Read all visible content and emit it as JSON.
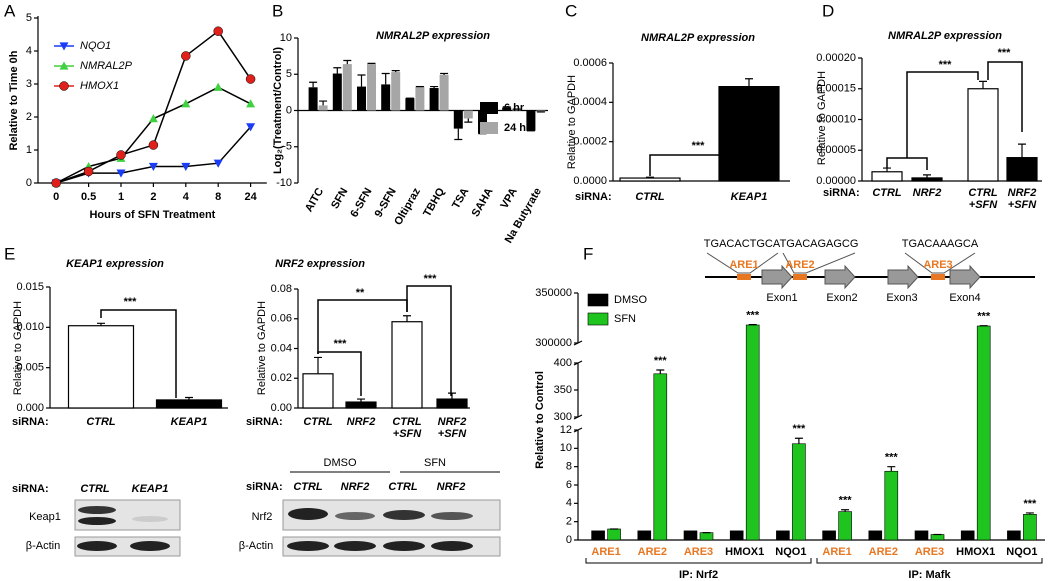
{
  "panel_labels": [
    "A",
    "B",
    "C",
    "D",
    "E",
    "F"
  ],
  "chart_data": [
    {
      "type": "line",
      "categories": [
        "0",
        "0.5",
        "1",
        "2",
        "4",
        "8",
        "24"
      ],
      "xlabel": "Hours of SFN Treatment",
      "ylabel": "Relative to Time 0h",
      "ylim": [
        0,
        5
      ],
      "yticks": [
        0,
        1,
        2,
        3,
        4,
        5
      ],
      "line_color": "#000000",
      "legend": "upper left",
      "series": [
        {
          "name": "NQO1",
          "color": "#1a3cf5",
          "marker": "triangle-down",
          "values": [
            0,
            0.3,
            0.3,
            0.5,
            0.5,
            0.6,
            1.7
          ]
        },
        {
          "name": "NMRAL2P",
          "color": "#3fd13f",
          "marker": "triangle-up",
          "values": [
            0,
            0.5,
            0.75,
            1.95,
            2.4,
            2.9,
            2.4
          ]
        },
        {
          "name": "HMOX1",
          "color": "#e0201b",
          "marker": "circle",
          "values": [
            0,
            0.35,
            0.85,
            1.15,
            3.85,
            4.6,
            3.15
          ]
        }
      ]
    },
    {
      "type": "grouped_bar",
      "title": "NMRAL2P expression",
      "ylabel": "Log₂(Treatment/Control)",
      "categories": [
        "AITC",
        "SFN",
        "6-SFN",
        "9-SFN",
        "Oltipraz",
        "TBHQ",
        "TSA",
        "SAHA",
        "VPA",
        "Na Butyrate"
      ],
      "ylim": [
        -10,
        10
      ],
      "yticks": [
        -10,
        -5,
        0,
        5,
        10
      ],
      "legend": "right",
      "series": [
        {
          "name": "6 hr",
          "color": "#000000",
          "values": [
            3.2,
            5.1,
            3.3,
            3.6,
            1.7,
            3.1,
            -2.5,
            -3.2,
            0.4,
            -2.8
          ],
          "errors": [
            0.7,
            0.8,
            1.6,
            1.5,
            0,
            0.2,
            1.5,
            0,
            0.1,
            0
          ]
        },
        {
          "name": "24 hr",
          "color": "#a6a6a6",
          "values": [
            0.7,
            6.4,
            6.4,
            5.3,
            3.3,
            4.9,
            -1.1,
            0.5,
            0.2,
            -0.2
          ],
          "errors": [
            0.6,
            0.5,
            0.1,
            0.2,
            0,
            0.2,
            0.5,
            0,
            0,
            0
          ]
        }
      ]
    },
    {
      "type": "bar",
      "title": "NMRAL2P expression",
      "ylabel": "Relative to GAPDH",
      "category_prefix": "siRNA:",
      "categories": [
        "CTRL",
        "KEAP1"
      ],
      "values": [
        1.5e-05,
        0.00048
      ],
      "errors": [
        4e-06,
        4e-05
      ],
      "colors": [
        "#ffffff",
        "#000000"
      ],
      "ylim": [
        0,
        0.0006
      ],
      "yticks": [
        {
          "value": 0,
          "label": "0.0000"
        },
        {
          "value": 0.0002,
          "label": "0.0002"
        },
        {
          "value": 0.0004,
          "label": "0.0004"
        },
        {
          "value": 0.0006,
          "label": "0.0006"
        }
      ],
      "significance": [
        "***"
      ]
    },
    {
      "type": "bar",
      "title": "NMRAL2P expression",
      "ylabel": "Relative to GAPDH",
      "category_prefix": "siRNA:",
      "categories": [
        "CTRL",
        "NRF2",
        [
          "CTRL",
          "+SFN"
        ],
        [
          "NRF2",
          "+SFN"
        ]
      ],
      "values": [
        1.5e-05,
        5e-06,
        0.00015,
        3.8e-05
      ],
      "errors": [
        6e-06,
        5e-06,
        1.2e-05,
        2.2e-05
      ],
      "colors": [
        "#ffffff",
        "#000000",
        "#ffffff",
        "#000000"
      ],
      "ylim": [
        0,
        0.0002
      ],
      "yticks": [
        {
          "value": 0,
          "label": "0.00000"
        },
        {
          "value": 5e-05,
          "label": "0.00005"
        },
        {
          "value": 0.0001,
          "label": "0.00010"
        },
        {
          "value": 0.00015,
          "label": "0.00015"
        },
        {
          "value": 0.0002,
          "label": "0.00020"
        }
      ],
      "significance": [
        "***",
        "***"
      ]
    },
    {
      "type": "bar",
      "title": "KEAP1 expression",
      "ylabel": "Relative to GAPDH",
      "category_prefix": "siRNA:",
      "categories": [
        "CTRL",
        "KEAP1"
      ],
      "values": [
        0.0102,
        0.001
      ],
      "errors": [
        0.0003,
        0.0003
      ],
      "colors": [
        "#ffffff",
        "#000000"
      ],
      "ylim": [
        0,
        0.015
      ],
      "yticks": [
        {
          "value": 0,
          "label": "0.000"
        },
        {
          "value": 0.005,
          "label": "0.005"
        },
        {
          "value": 0.01,
          "label": "0.010"
        },
        {
          "value": 0.015,
          "label": "0.015"
        }
      ],
      "significance": [
        "***"
      ]
    },
    {
      "type": "bar",
      "title": "NRF2 expression",
      "ylabel": "Relative to GAPDH",
      "category_prefix": "siRNA:",
      "categories": [
        "CTRL",
        "NRF2",
        [
          "CTRL",
          "+SFN"
        ],
        [
          "NRF2",
          "+SFN"
        ]
      ],
      "values": [
        0.023,
        0.004,
        0.058,
        0.006
      ],
      "errors": [
        0.011,
        0.002,
        0.004,
        0.004
      ],
      "colors": [
        "#ffffff",
        "#000000",
        "#ffffff",
        "#000000"
      ],
      "ylim": [
        0,
        0.08
      ],
      "yticks": [
        {
          "value": 0,
          "label": "0.00"
        },
        {
          "value": 0.02,
          "label": "0.02"
        },
        {
          "value": 0.04,
          "label": "0.04"
        },
        {
          "value": 0.06,
          "label": "0.06"
        },
        {
          "value": 0.08,
          "label": "0.08"
        }
      ],
      "significance": [
        "***",
        "**",
        "***"
      ]
    },
    {
      "type": "broken_bar",
      "ylabel": "Relative to Control",
      "categories": [
        "ARE1",
        "ARE2",
        "ARE3",
        "HMOX1",
        "NQO1",
        "ARE1",
        "ARE2",
        "ARE3",
        "HMOX1",
        "NQO1"
      ],
      "category_colors": [
        "#e87722",
        "#e87722",
        "#e87722",
        "#000000",
        "#000000",
        "#e87722",
        "#e87722",
        "#e87722",
        "#000000",
        "#000000"
      ],
      "groups": [
        "IP: Nrf2",
        "IP: Mafk"
      ],
      "axis_segments": [
        {
          "ylim": [
            0,
            12
          ],
          "yticks": [
            0,
            2,
            4,
            6,
            8,
            10,
            12
          ]
        },
        {
          "ylim": [
            300,
            400
          ],
          "yticks": [
            300,
            350,
            400
          ]
        },
        {
          "ylim": [
            300000,
            350000
          ],
          "yticks": [
            300000,
            350000
          ]
        }
      ],
      "legend": "upper left",
      "series": [
        {
          "name": "DMSO",
          "color": "#000000",
          "values": [
            1,
            1,
            1,
            1,
            1,
            1,
            1,
            1,
            1,
            1
          ]
        },
        {
          "name": "SFN",
          "color": "#1fc41f",
          "values": [
            1.2,
            380,
            0.8,
            318000,
            10.5,
            3.1,
            7.5,
            0.6,
            317000,
            2.8
          ],
          "errors": [
            0,
            7,
            0,
            400,
            0.6,
            0.2,
            0.5,
            0,
            300,
            0.15
          ]
        }
      ],
      "significance": [
        "***",
        "***",
        "***",
        "***",
        "***",
        "***",
        "***"
      ]
    }
  ],
  "gene_diagram": {
    "sequences": [
      "TGACACTGCA",
      "TGACAGAGCG",
      "TGACAAAGCA"
    ],
    "elements": [
      "ARE1",
      "ARE2",
      "ARE3"
    ],
    "exons": [
      "Exon1",
      "Exon2",
      "Exon3",
      "Exon4"
    ]
  },
  "blots": [
    {
      "row_label": "siRNA:",
      "lanes": [
        "CTRL",
        "KEAP1"
      ],
      "proteins": [
        "Keap1",
        "β-Actin"
      ]
    },
    {
      "conditions": [
        "DMSO",
        "SFN"
      ],
      "row_label": "siRNA:",
      "lanes": [
        "CTRL",
        "NRF2",
        "CTRL",
        "NRF2"
      ],
      "proteins": [
        "Nrf2",
        "β-Actin"
      ]
    }
  ]
}
